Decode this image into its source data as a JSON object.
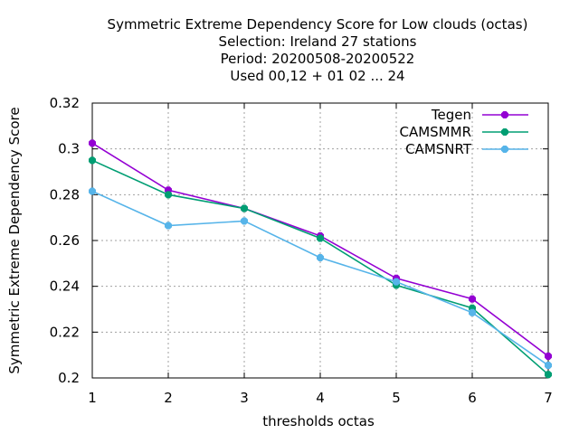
{
  "chart_data": {
    "type": "line",
    "title_lines": [
      "Symmetric Extreme Dependency Score  for Low clouds (octas)",
      "Selection: Ireland     27 stations",
      "Period: 20200508-20200522",
      "Used  00,12  + 01 02 ... 24"
    ],
    "xlabel": "thresholds octas",
    "ylabel": "Symmetric Extreme Dependency Score",
    "x": [
      1,
      2,
      3,
      4,
      5,
      6,
      7
    ],
    "xlim": [
      1,
      7
    ],
    "ylim": [
      0.2,
      0.32
    ],
    "x_ticks": [
      "1",
      "2",
      "3",
      "4",
      "5",
      "6",
      "7"
    ],
    "y_ticks": [
      0.2,
      0.22,
      0.24,
      0.26,
      0.28,
      0.3,
      0.32
    ],
    "y_tick_labels": [
      "0.2",
      "0.22",
      "0.24",
      "0.26",
      "0.28",
      "0.3",
      "0.32"
    ],
    "grid": true,
    "legend_position": "top-right",
    "series": [
      {
        "name": "Tegen",
        "color": "#9400d3",
        "values": [
          0.3025,
          0.282,
          0.274,
          0.262,
          0.2435,
          0.2345,
          0.2095
        ]
      },
      {
        "name": "CAMSMMR",
        "color": "#009e73",
        "values": [
          0.295,
          0.28,
          0.274,
          0.261,
          0.2405,
          0.2305,
          0.2015
        ]
      },
      {
        "name": "CAMSNRT",
        "color": "#56b4e9",
        "values": [
          0.2815,
          0.2665,
          0.2685,
          0.2525,
          0.242,
          0.2285,
          0.2055
        ]
      }
    ]
  }
}
